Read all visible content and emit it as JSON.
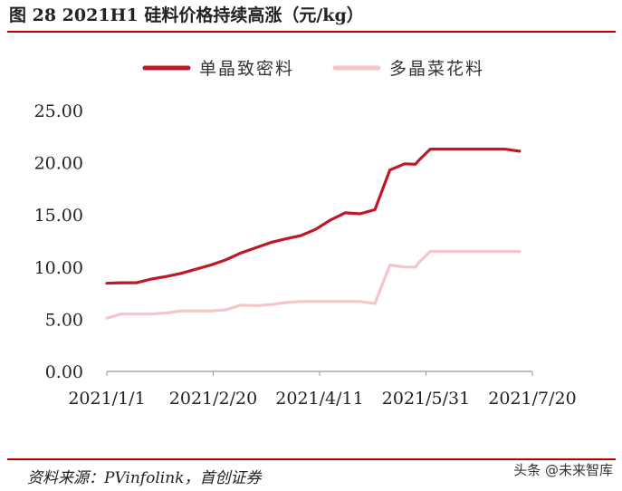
{
  "figure": {
    "title": "图 28 2021H1 硅料价格持续高涨（元/kg）",
    "source": "资料来源：PVinfolink，首创证券",
    "watermark": "头条 @未来智库"
  },
  "colors": {
    "accent_rule": "#c00000",
    "series_mono": "#c0162a",
    "series_poly": "#f4c6c9",
    "axis": "#999999"
  },
  "chart_data": {
    "type": "line",
    "title": "2021H1 硅料价格持续高涨（元/kg）",
    "xlabel": "",
    "ylabel": "",
    "x_ticks": [
      "2021/1/1",
      "2021/2/20",
      "2021/4/11",
      "2021/5/31",
      "2021/7/20"
    ],
    "x": [
      "2021/1/1",
      "2021/1/8",
      "2021/1/15",
      "2021/1/22",
      "2021/1/29",
      "2021/2/5",
      "2021/2/12",
      "2021/2/19",
      "2021/2/26",
      "2021/3/5",
      "2021/3/12",
      "2021/3/19",
      "2021/3/26",
      "2021/4/2",
      "2021/4/9",
      "2021/4/16",
      "2021/4/23",
      "2021/4/30",
      "2021/5/7",
      "2021/5/14",
      "2021/5/21",
      "2021/5/26",
      "2021/5/28",
      "2021/6/2",
      "2021/6/9",
      "2021/6/16",
      "2021/6/23",
      "2021/6/30",
      "2021/7/7",
      "2021/7/14"
    ],
    "series": [
      {
        "name": "单晶致密料",
        "values": [
          8.45,
          8.5,
          8.5,
          8.85,
          9.1,
          9.4,
          9.8,
          10.2,
          10.7,
          11.35,
          11.85,
          12.35,
          12.7,
          13.0,
          13.6,
          14.5,
          15.2,
          15.1,
          15.5,
          19.3,
          19.9,
          19.85,
          20.3,
          21.3,
          21.3,
          21.3,
          21.3,
          21.3,
          21.3,
          21.1
        ]
      },
      {
        "name": "多晶菜花料",
        "values": [
          5.1,
          5.5,
          5.5,
          5.5,
          5.6,
          5.8,
          5.8,
          5.8,
          5.9,
          6.35,
          6.3,
          6.4,
          6.6,
          6.7,
          6.7,
          6.7,
          6.7,
          6.7,
          6.5,
          10.2,
          10.0,
          10.0,
          10.5,
          11.5,
          11.5,
          11.5,
          11.5,
          11.5,
          11.5,
          11.5
        ]
      }
    ],
    "ylim": [
      0,
      25
    ],
    "y_ticks": [
      "0.00",
      "5.00",
      "10.00",
      "15.00",
      "20.00",
      "25.00"
    ],
    "grid": false,
    "legend": "top"
  }
}
